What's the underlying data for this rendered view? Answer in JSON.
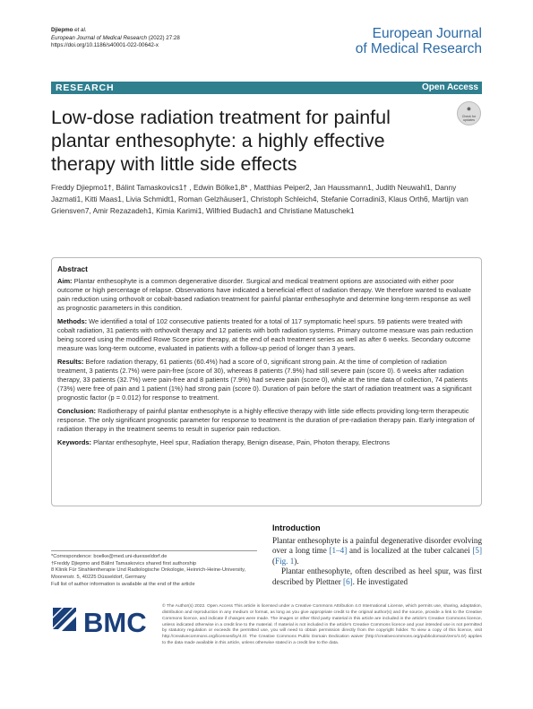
{
  "header": {
    "author": "Djiepmo",
    "author_suffix": " et al.",
    "journal": "European Journal of Medical Research",
    "year_vol": "(2022) 27:28",
    "doi": "https://doi.org/10.1186/s40001-022-00642-x",
    "brand_line1": "European Journal",
    "brand_line2": "of Medical Research"
  },
  "bar": {
    "label": "RESEARCH",
    "access": "Open Access",
    "color": "#2f7f8f"
  },
  "check_updates": {
    "line1": "Check for",
    "line2": "updates",
    "icon": "check-for-updates-icon"
  },
  "title": "Low-dose radiation treatment for painful plantar enthesophyte: a highly effective therapy with little side effects",
  "authors": "Freddy Djiepmo1†, Bálint Tamaskovics1† , Edwin Bölke1,8* , Matthias Peiper2, Jan Haussmann1, Judith Neuwahl1, Danny Jazmati1, Kitti Maas1, Livia Schmidt1, Roman Gelzhäuser1, Christoph Schleich4, Stefanie Corradini3, Klaus Orth6, Martijn van Griensven7, Amir Rezazadeh1, Kimia Karimi1, Wilfried Budach1 and Christiane Matuschek1",
  "abstract": {
    "heading": "Abstract",
    "aim_label": "Aim:",
    "aim": "Plantar enthesophyte is a common degenerative disorder. Surgical and medical treatment options are associated with either poor outcome or high percentage of relapse. Observations have indicated a beneficial effect of radiation therapy. We therefore wanted to evaluate pain reduction using orthovolt or cobalt-based radiation treatment for painful plantar enthesophyte and determine long-term response as well as prognostic parameters in this condition.",
    "methods_label": "Methods:",
    "methods": "We identified a total of 102 consecutive patients treated for a total of 117 symptomatic heel spurs. 59 patients were treated with cobalt radiation, 31 patients with orthovolt therapy and 12 patients with both radiation systems. Primary outcome measure was pain reduction being scored using the modified Rowe Score prior therapy, at the end of each treatment series as well as after 6 weeks. Secondary outcome measure was long-term outcome, evaluated in patients with a follow-up period of longer than 3 years.",
    "results_label": "Results:",
    "results": "Before radiation therapy, 61 patients (60.4%) had a score of 0, significant strong pain. At the time of completion of radiation treatment, 3 patients (2.7%) were pain-free (score of 30), whereas 8 patients (7.9%) had still severe pain (score 0). 6 weeks after radiation therapy, 33 patients (32.7%) were pain-free and 8 patients (7.9%) had severe pain (score 0), while at the time data of collection, 74 patients (73%) were free of pain and 1 patient (1%) had strong pain (score 0). Duration of pain before the start of radiation treatment was a significant prognostic factor (p = 0.012) for response to treatment.",
    "conclusion_label": "Conclusion:",
    "conclusion": "Radiotherapy of painful plantar enthesophyte is a highly effective therapy with little side effects providing long-term therapeutic response. The only significant prognostic parameter for response to treatment is the duration of pre-radiation therapy pain. Early integration of radiation therapy in the treatment seems to result in superior pain reduction.",
    "keywords_label": "Keywords:",
    "keywords": "Plantar enthesophyte, Heel spur, Radiation therapy, Benign disease, Pain, Photon therapy, Electrons"
  },
  "intro": {
    "heading": "Introduction",
    "p1_a": "Plantar enthesophyte is a painful degenerative disorder evolving over a long time ",
    "p1_ref1": "[1–4]",
    "p1_b": " and is localized at the tuber calcanei ",
    "p1_ref2": "[5]",
    "p1_c": " (",
    "p1_ref3": "Fig. 1",
    "p1_d": ").",
    "p2_a": "Plantar enthesophyte, often described as heel spur, was first described by Plettner ",
    "p2_ref": "[6]",
    "p2_b": ". He investigated"
  },
  "notes": {
    "corr": "*Correspondence: boelke@med.uni-duesseldorf.de",
    "shared": "†Freddy Djiepmo and Bálint Tamaskovics shared first authorship",
    "affil": "8 Klinik Für Strahlentherapie Und Radiologische Onkologie, Heinrich-Heine-University, Moorenstr. 5, 40225 Düsseldorf, Germany",
    "full": "Full list of author information is available at the end of the article"
  },
  "bmc": {
    "text": "BMC",
    "color": "#1a3f7a"
  },
  "license": "© The Author(s) 2022. Open Access This article is licensed under a Creative Commons Attribution 4.0 International License, which permits use, sharing, adaptation, distribution and reproduction in any medium or format, as long as you give appropriate credit to the original author(s) and the source, provide a link to the Creative Commons licence, and indicate if changes were made. The images or other third party material in this article are included in the article's Creative Commons licence, unless indicated otherwise in a credit line to the material. If material is not included in the article's Creative Commons licence and your intended use is not permitted by statutory regulation or exceeds the permitted use, you will need to obtain permission directly from the copyright holder. To view a copy of this licence, visit http://creativecommons.org/licenses/by/4.0/. The Creative Commons Public Domain Dedication waiver (http://creativecommons.org/publicdomain/zero/1.0/) applies to the data made available in this article, unless otherwise stated in a credit line to the data."
}
